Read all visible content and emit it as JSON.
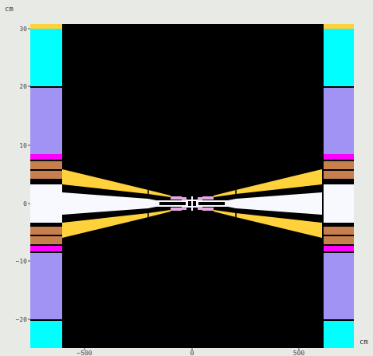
{
  "units": {
    "x": "cm",
    "y": "cm"
  },
  "axes": {
    "x": {
      "range": [
        -750,
        750
      ],
      "ticks": [
        -500,
        0,
        500
      ],
      "tick_labels": [
        "−500",
        "0",
        "500"
      ]
    },
    "y": {
      "range": [
        -30,
        30
      ],
      "ticks": [
        30,
        20,
        10,
        0,
        -10,
        -20
      ],
      "tick_labels": [
        "30",
        "20",
        "10",
        "0",
        "−10",
        "−20"
      ]
    }
  },
  "colors": {
    "background": "#000000",
    "cyan": "#00ffff",
    "lavender": "#a093f4",
    "magenta": "#ff00ff",
    "brown": "#c87f4e",
    "yellow": "#ffd23c",
    "white": "#f7f9ff",
    "pink": "#e8a6e0",
    "frame": "#e8eae6"
  }
}
